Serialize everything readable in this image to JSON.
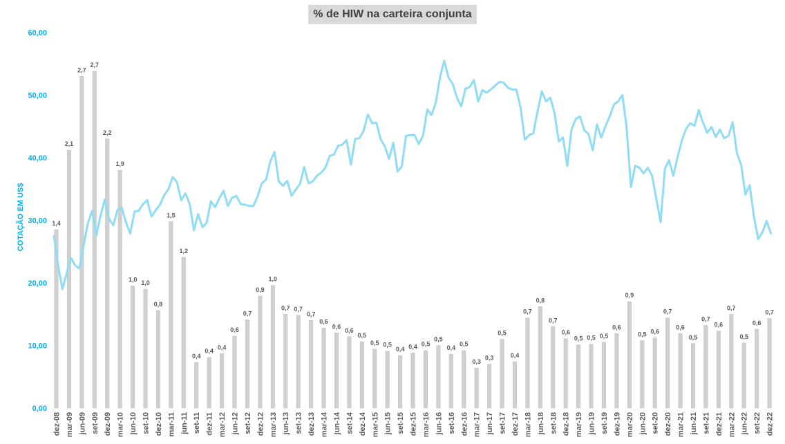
{
  "chart_data": {
    "type": "bar+line",
    "title": "% de HIW na carteira conjunta",
    "ylabel": "COTAÇÃO EM US$",
    "xlabel": "",
    "ylim": [
      0,
      60
    ],
    "yticks": [
      "0,00",
      "10,00",
      "20,00",
      "30,00",
      "40,00",
      "50,00",
      "60,00"
    ],
    "x_tick_labels": [
      "dez-08",
      "mar-09",
      "jun-09",
      "set-09",
      "dez-09",
      "mar-10",
      "jun-10",
      "set-10",
      "dez-10",
      "mar-11",
      "jun-11",
      "set-11",
      "dez-11",
      "mar-12",
      "jun-12",
      "set-12",
      "dez-12",
      "mar-13",
      "jun-13",
      "set-13",
      "dez-13",
      "mar-14",
      "jun-14",
      "set-14",
      "dez-14",
      "mar-15",
      "jun-15",
      "set-15",
      "dez-15",
      "mar-16",
      "jun-16",
      "set-16",
      "dez-16",
      "mar-17",
      "jun-17",
      "set-17",
      "dez-17",
      "mar-18",
      "jun-18",
      "set-18",
      "dez-18",
      "mar-19",
      "jun-19",
      "set-19",
      "dez-19",
      "mar-20",
      "jun-20",
      "set-20",
      "dez-20",
      "mar-21",
      "jun-21",
      "set-21",
      "dez-21",
      "mar-22",
      "jun-22",
      "set-22",
      "dez-22"
    ],
    "bars": {
      "values": [
        28.5,
        41.2,
        53.0,
        53.8,
        43.0,
        38.0,
        19.5,
        19.0,
        15.6,
        29.8,
        24.1,
        7.3,
        8.1,
        8.7,
        11.5,
        14.1,
        17.9,
        19.6,
        15.0,
        14.8,
        14.0,
        12.8,
        12.0,
        11.4,
        10.6,
        9.4,
        9.1,
        8.4,
        8.8,
        9.2,
        10.0,
        8.6,
        9.2,
        6.4,
        7.0,
        11.0,
        7.4,
        14.4,
        16.2,
        13.0,
        11.1,
        10.1,
        10.2,
        10.5,
        11.9,
        17.0,
        10.8,
        11.2,
        14.4,
        11.9,
        10.3,
        13.2,
        12.3,
        15.0,
        10.4,
        12.6,
        14.3
      ],
      "labels": [
        "1,4",
        "2,1",
        "2,7",
        "2,7",
        "2,2",
        "1,9",
        "1,0",
        "1,0",
        "0,8",
        "1,5",
        "1,2",
        "0,4",
        "0,4",
        "0,4",
        "0,6",
        "0,7",
        "0,9",
        "1,0",
        "0,7",
        "0,7",
        "0,7",
        "0,6",
        "0,6",
        "0,6",
        "0,5",
        "0,5",
        "0,5",
        "0,4",
        "0,4",
        "0,5",
        "0,5",
        "0,4",
        "0,5",
        "0,3",
        "0,3",
        "0,5",
        "0,4",
        "0,7",
        "0,8",
        "0,7",
        "0,6",
        "0,5",
        "0,5",
        "0,5",
        "0,6",
        "0,9",
        "0,5",
        "0,6",
        "0,7",
        "0,6",
        "0,5",
        "0,7",
        "0,6",
        "0,7",
        "0,5",
        "0,6",
        "0,7"
      ],
      "color": "#d0d0d0"
    },
    "line": {
      "color": "#8fdcf5",
      "values": [
        27.5,
        22.8,
        19.0,
        21.5,
        24.0,
        22.8,
        22.3,
        26.0,
        29.5,
        31.5,
        27.6,
        30.8,
        33.3,
        30.2,
        29.2,
        31.7,
        32.0,
        29.6,
        27.9,
        31.4,
        31.5,
        32.6,
        33.2,
        30.6,
        31.6,
        32.5,
        34.0,
        35.0,
        36.9,
        36.1,
        33.2,
        34.3,
        32.6,
        28.4,
        31.0,
        28.9,
        29.6,
        33.0,
        32.1,
        33.5,
        34.7,
        32.3,
        33.6,
        33.9,
        32.6,
        32.5,
        32.3,
        32.3,
        33.8,
        35.9,
        36.5,
        39.4,
        40.9,
        36.2,
        35.5,
        36.3,
        33.9,
        34.9,
        35.8,
        38.5,
        35.9,
        36.2,
        37.1,
        37.6,
        38.4,
        40.3,
        40.5,
        41.9,
        42.1,
        42.8,
        38.9,
        43.0,
        43.1,
        44.3,
        46.9,
        45.5,
        45.6,
        43.0,
        41.8,
        39.8,
        42.4,
        37.8,
        38.6,
        43.5,
        43.6,
        43.6,
        42.2,
        43.5,
        47.7,
        46.8,
        48.8,
        52.8,
        55.5,
        52.8,
        51.8,
        49.6,
        48.2,
        51.0,
        51.3,
        52.4,
        49.0,
        50.8,
        50.4,
        50.9,
        51.5,
        52.1,
        52.0,
        51.2,
        50.9,
        50.9,
        48.0,
        42.9,
        43.6,
        43.9,
        47.4,
        50.6,
        49.0,
        49.6,
        47.1,
        42.6,
        43.2,
        38.7,
        44.5,
        46.2,
        46.6,
        44.4,
        43.8,
        41.2,
        45.3,
        43.2,
        45.0,
        46.6,
        48.5,
        49.0,
        50.0,
        44.8,
        35.3,
        38.7,
        38.4,
        37.5,
        38.4,
        37.1,
        33.4,
        29.7,
        38.2,
        39.6,
        37.1,
        40.1,
        42.7,
        44.6,
        45.5,
        45.1,
        47.6,
        45.6,
        44.0,
        44.9,
        43.3,
        44.5,
        43.1,
        43.5,
        45.7,
        40.7,
        38.8,
        34.1,
        35.6,
        30.6,
        27.0,
        28.1,
        29.9,
        27.9
      ]
    }
  }
}
